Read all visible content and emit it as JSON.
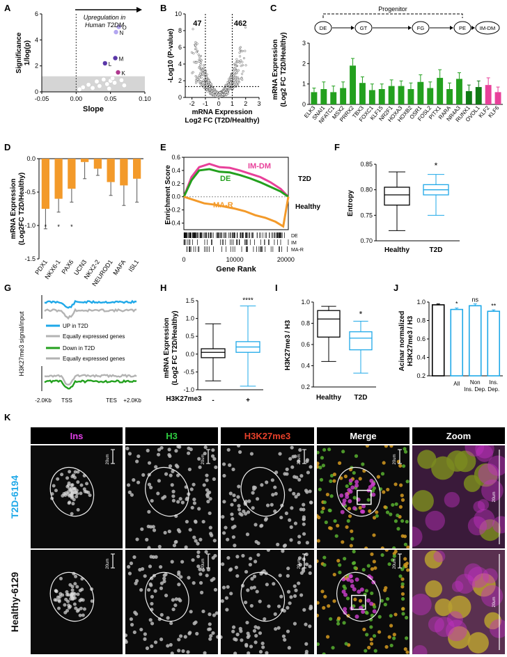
{
  "panel_letters": {
    "a": "A",
    "b": "B",
    "c": "C",
    "d": "D",
    "e": "E",
    "f": "F",
    "g": "G",
    "h": "H",
    "i": "I",
    "j": "J",
    "k": "K"
  },
  "colors": {
    "blue": "#1ea8e8",
    "gray": "#b3b3b3",
    "green": "#23a01e",
    "pink": "#e8409a",
    "orange": "#f39a2a",
    "darkgreen": "#0f7a14",
    "lightgreen": "#5fce2e",
    "purple": "#5a37a8",
    "lavender": "#b3a6f0"
  },
  "chart_data": [
    {
      "id": "A",
      "type": "scatter",
      "ylabel_line1": "Significance",
      "ylabel_line2": "1/log(p)",
      "xlabel": "Slope",
      "annotation_line1": "Upregulation in",
      "annotation_line2": "Human T2DM",
      "xlim": [
        -0.05,
        0.1
      ],
      "ylim": [
        0,
        6
      ],
      "xticks": [
        "-0.05",
        "0.00",
        "0.05",
        "0.10"
      ],
      "yticks": [
        "0",
        "2",
        "4",
        "6"
      ],
      "labeled_points": [
        {
          "label": "O",
          "x": 0.062,
          "y": 5.0
        },
        {
          "label": "N",
          "x": 0.058,
          "y": 4.6
        },
        {
          "label": "M",
          "x": 0.057,
          "y": 2.6
        },
        {
          "label": "L",
          "x": 0.042,
          "y": 2.2
        },
        {
          "label": "K",
          "x": 0.061,
          "y": 1.5
        }
      ],
      "background_points": [
        [
          0.01,
          0.35
        ],
        [
          0.018,
          0.55
        ],
        [
          0.024,
          0.3
        ],
        [
          0.03,
          0.8
        ],
        [
          0.034,
          0.45
        ],
        [
          0.04,
          0.95
        ],
        [
          0.045,
          0.6
        ],
        [
          0.05,
          0.85
        ],
        [
          0.053,
          1.05
        ],
        [
          0.056,
          0.7
        ],
        [
          0.066,
          0.9
        ],
        [
          0.07,
          0.5
        ],
        [
          0.005,
          0.2
        ],
        [
          0.048,
          0.25
        ]
      ]
    },
    {
      "id": "B",
      "type": "scatter",
      "ylabel": "-Log10 (P-value)",
      "xlabel_line1": "mRNA Expression",
      "xlabel_line2": "Log2 FC (T2D/Healthy)",
      "xlim": [
        -2.5,
        3
      ],
      "ylim": [
        0,
        10
      ],
      "xticks": [
        "-2",
        "-1",
        "0",
        "1",
        "2",
        "3"
      ],
      "yticks": [
        "0",
        "2",
        "4",
        "6",
        "8",
        "10"
      ],
      "count_left": "47",
      "count_right": "462"
    },
    {
      "id": "C",
      "type": "bar",
      "ylabel_line1": "mRNA Expression",
      "ylabel_line2": "(Log2 FC T2D/Healthy)",
      "ylim": [
        0,
        3
      ],
      "yticks": [
        "0",
        "1",
        "2",
        "3"
      ],
      "bracket_label": "Progenitor",
      "stages": [
        "DE",
        "GT",
        "FG",
        "PE",
        "IM-DM"
      ],
      "categories": [
        "ELK3",
        "SNAI1",
        "NFATC1",
        "MSX2",
        "PRRX2",
        "TBX3",
        "FOXC1",
        "KLF15",
        "NR2F1",
        "HOXA3",
        "HOXB2",
        "OSR1",
        "FOSL2",
        "PITX1",
        "RARA",
        "NR4A3",
        "RUNX1",
        "OVOL1",
        "KLF2",
        "KLF6"
      ],
      "values": [
        0.6,
        0.75,
        0.6,
        0.8,
        1.9,
        1.05,
        0.7,
        0.75,
        0.9,
        0.9,
        0.75,
        1.1,
        0.8,
        1.3,
        0.75,
        1.25,
        0.65,
        0.85,
        0.95,
        0.6
      ],
      "errors": [
        0.2,
        0.35,
        0.3,
        0.3,
        0.35,
        0.3,
        0.3,
        0.25,
        0.3,
        0.25,
        0.3,
        0.35,
        0.3,
        0.4,
        0.3,
        0.3,
        0.3,
        0.3,
        0.35,
        0.25
      ],
      "bar_colors": [
        "#23a01e",
        "#23a01e",
        "#23a01e",
        "#23a01e",
        "#23a01e",
        "#23a01e",
        "#23a01e",
        "#23a01e",
        "#23a01e",
        "#23a01e",
        "#23a01e",
        "#23a01e",
        "#23a01e",
        "#23a01e",
        "#23a01e",
        "#23a01e",
        "#0f7a14",
        "#0f7a14",
        "#e8409a",
        "#e8409a"
      ]
    },
    {
      "id": "D",
      "type": "bar",
      "ylabel_line1": "mRNA Expression",
      "ylabel_line2": "(Log2FC T2D/Healthy)",
      "ylim": [
        -1.5,
        0
      ],
      "yticks": [
        "0.0",
        "-0.5",
        "-1.0",
        "-1.5"
      ],
      "categories": [
        "PDX1",
        "NKX6-1",
        "PAX6",
        "UCN3",
        "NKX2-2",
        "NEUROD1",
        "MAFA",
        "ISL1"
      ],
      "values": [
        -0.75,
        -0.6,
        -0.45,
        -0.05,
        -0.15,
        -0.35,
        -0.4,
        -0.3
      ],
      "errors": [
        0.3,
        0.2,
        0.2,
        0.25,
        0.1,
        0.2,
        0.3,
        0.35
      ],
      "stars": [
        "*",
        "*",
        "*",
        "",
        "",
        "",
        "",
        ""
      ]
    },
    {
      "id": "E",
      "type": "line",
      "ylabel": "Enrichment Score",
      "xlabel": "Gene Rank",
      "ylim": [
        -0.5,
        0.6
      ],
      "yticks": [
        "0.6",
        "0.4",
        "0.2",
        "0.0",
        "-0.2",
        "-0.4"
      ],
      "xticks": [
        "0",
        "10000",
        "20000"
      ],
      "right_top": "T2D",
      "right_bottom": "Healthy",
      "series": [
        {
          "name": "IM-DM",
          "x": [
            0,
            1500,
            3000,
            5000,
            7000,
            9000,
            11000,
            13000,
            15000,
            17000,
            19000,
            20500
          ],
          "y": [
            0,
            0.3,
            0.45,
            0.5,
            0.45,
            0.44,
            0.4,
            0.35,
            0.3,
            0.22,
            0.12,
            0
          ]
        },
        {
          "name": "DE",
          "x": [
            0,
            1500,
            3000,
            5000,
            7000,
            9000,
            11000,
            13000,
            15000,
            17000,
            19000,
            20500
          ],
          "y": [
            0,
            0.25,
            0.4,
            0.42,
            0.38,
            0.37,
            0.33,
            0.28,
            0.22,
            0.15,
            0.08,
            0
          ]
        },
        {
          "name": "MA-R",
          "x": [
            0,
            2000,
            4000,
            6000,
            8000,
            10000,
            12000,
            14000,
            16000,
            18000,
            19500,
            20500
          ],
          "y": [
            0,
            -0.05,
            -0.1,
            -0.12,
            -0.15,
            -0.18,
            -0.22,
            -0.28,
            -0.32,
            -0.38,
            -0.45,
            0
          ]
        }
      ],
      "rug_labels": [
        "DE",
        "IM",
        "MA-R"
      ]
    },
    {
      "id": "F",
      "type": "box",
      "ylabel": "Entropy",
      "ylim": [
        0.7,
        0.85
      ],
      "yticks": [
        "0.70",
        "0.75",
        "0.80",
        "0.85"
      ],
      "categories": [
        "Healthy",
        "T2D"
      ],
      "boxes": [
        [
          0.72,
          0.77,
          0.79,
          0.805,
          0.835
        ],
        [
          0.75,
          0.79,
          0.8,
          0.81,
          0.83
        ]
      ],
      "star": "*"
    },
    {
      "id": "G",
      "type": "line",
      "ylabel": "H3K27me3 signal/input",
      "legend": [
        "UP in T2D",
        "Equally expressed genes",
        "Down in T2D",
        "Equally expressed genes"
      ],
      "xticks": [
        "-2.0Kb",
        "TSS",
        "TES",
        "+2.0Kb"
      ]
    },
    {
      "id": "H",
      "type": "box",
      "ylabel_line1": "mRNA Expression",
      "ylabel_line2": "(Log2 FC T2D/Healthy)",
      "xlabel": "H3K27me3",
      "ylim": [
        -1,
        1.5
      ],
      "yticks": [
        "-1.0",
        "-0.5",
        "0.0",
        "0.5",
        "1.0",
        "1.5"
      ],
      "categories": [
        "-",
        "+"
      ],
      "boxes": [
        [
          -0.75,
          -0.1,
          0.05,
          0.15,
          0.85
        ],
        [
          -0.9,
          0.05,
          0.2,
          0.35,
          1.35
        ]
      ],
      "star": "****"
    },
    {
      "id": "I",
      "type": "box",
      "ylabel": "H3K27me3 / H3",
      "ylim": [
        0.2,
        1.0
      ],
      "yticks": [
        "0.2",
        "0.4",
        "0.6",
        "0.8",
        "1.0"
      ],
      "categories": [
        "Healthy",
        "T2D"
      ],
      "boxes": [
        [
          0.44,
          0.67,
          0.84,
          0.92,
          0.96
        ],
        [
          0.33,
          0.55,
          0.66,
          0.72,
          0.82
        ]
      ],
      "star": "*"
    },
    {
      "id": "J",
      "type": "bar",
      "ylabel_line1": "Acinar normalized",
      "ylabel_line2": "H3K27me3 / H3",
      "ylim": [
        0.2,
        1.0
      ],
      "yticks": [
        "0.2",
        "0.4",
        "0.6",
        "0.8",
        "1.0"
      ],
      "categories": [
        "",
        "All",
        "Non Ins. Dep.",
        "Ins. Dep."
      ],
      "values": [
        0.97,
        0.92,
        0.96,
        0.9
      ],
      "errors": [
        0.01,
        0.015,
        0.02,
        0.015
      ],
      "stars": [
        "",
        "*",
        "ns",
        "**"
      ]
    }
  ],
  "panel_k": {
    "columns": [
      "Ins",
      "H3",
      "H3K27me3",
      "Merge",
      "Zoom"
    ],
    "column_colors": [
      "#e23fe8",
      "#2ecc40",
      "#e8402a",
      "#ffffff",
      "#ffffff"
    ],
    "rows": [
      "T2D-6194",
      "Healthy-6129"
    ],
    "row_colors": [
      "#1ea8e8",
      "#111111"
    ],
    "scale_bar": "20um"
  }
}
